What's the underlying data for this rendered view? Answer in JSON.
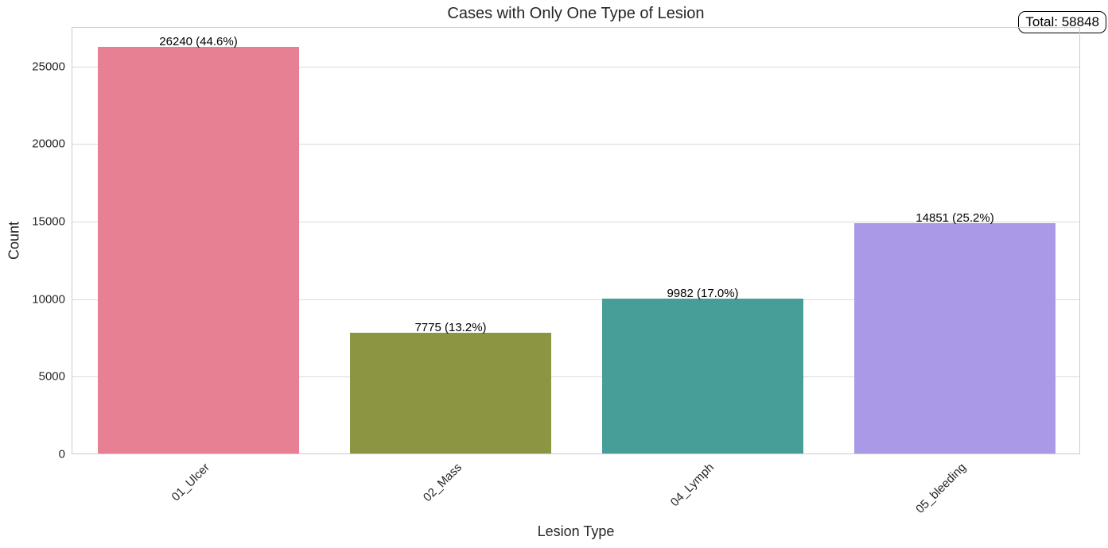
{
  "chart_data": {
    "type": "bar",
    "title": "Cases with Only One Type of Lesion",
    "xlabel": "Lesion Type",
    "ylabel": "Count",
    "categories": [
      "01_Ulcer",
      "02_Mass",
      "04_Lymph",
      "05_bleeding"
    ],
    "values": [
      26240,
      7775,
      9982,
      14851
    ],
    "percentages": [
      "44.6%",
      "13.2%",
      "17.0%",
      "25.2%"
    ],
    "bar_labels": [
      "26240 (44.6%)",
      "7775 (13.2%)",
      "9982 (17.0%)",
      "14851 (25.2%)"
    ],
    "colors": [
      "#e88093",
      "#8c9642",
      "#479e98",
      "#aa99e6"
    ],
    "yticks": [
      0,
      5000,
      10000,
      15000,
      20000,
      25000
    ],
    "ytick_labels": [
      "0",
      "5000",
      "10000",
      "15000",
      "20000",
      "25000"
    ],
    "ylim": [
      0,
      27552
    ],
    "grid": true,
    "xtick_rotation": 45,
    "annotation": "Total: 58848",
    "total": 58848
  }
}
